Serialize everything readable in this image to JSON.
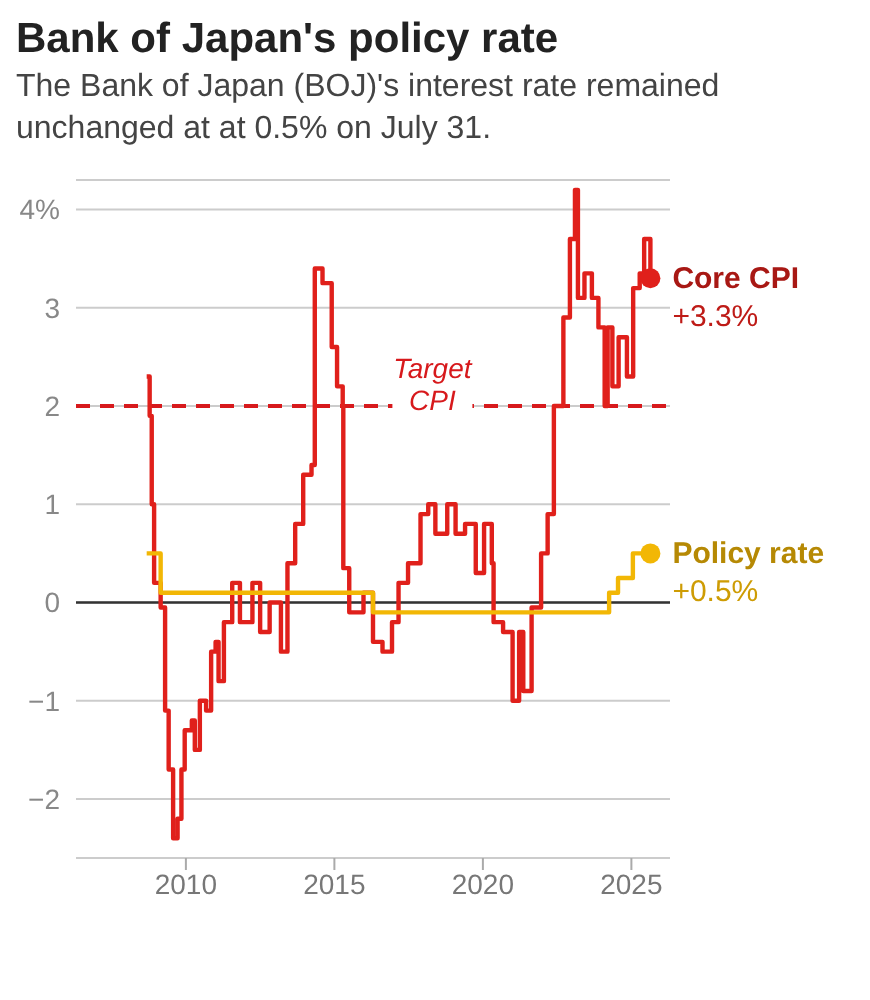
{
  "chart_data": {
    "type": "step",
    "title": "Bank of Japan's policy rate",
    "subtitle": "The Bank of Japan (BOJ)'s interest rate remained unchanged at at 0.5% on July 31.",
    "xlim": [
      2006.3,
      2026.3
    ],
    "xticks": [
      2010,
      2015,
      2020,
      2025
    ],
    "ylim": [
      -2.6,
      4.3
    ],
    "yticks": [
      {
        "value": -2,
        "label": "−2"
      },
      {
        "value": -1,
        "label": "−1"
      },
      0,
      1,
      2,
      3,
      {
        "value": 4,
        "label": "4%"
      }
    ],
    "grid": "y",
    "ref_lines": [
      {
        "axis": "y",
        "value": 0,
        "label": null,
        "color": "#333333",
        "line_style": "solid"
      },
      {
        "axis": "y",
        "value": 2,
        "label": "Target CPI",
        "color": "#d7191c",
        "line_style": "dashed"
      }
    ],
    "series": [
      {
        "name": "Core CPI",
        "color": "#e0201b",
        "x": [
          2008.68,
          2008.78,
          2008.85,
          2008.93,
          2009.15,
          2009.3,
          2009.42,
          2009.57,
          2009.72,
          2009.85,
          2009.96,
          2010.2,
          2010.3,
          2010.47,
          2010.68,
          2010.85,
          2011.0,
          2011.1,
          2011.28,
          2011.56,
          2011.82,
          2012.24,
          2012.5,
          2012.82,
          2013.2,
          2013.42,
          2013.68,
          2013.95,
          2014.23,
          2014.34,
          2014.6,
          2014.91,
          2015.09,
          2015.28,
          2015.3,
          2015.5,
          2015.98,
          2016.3,
          2016.62,
          2016.94,
          2017.16,
          2017.48,
          2017.9,
          2018.16,
          2018.4,
          2018.8,
          2019.08,
          2019.4,
          2019.76,
          2020.04,
          2020.3,
          2020.36,
          2020.68,
          2021.0,
          2021.22,
          2021.36,
          2021.64,
          2021.96,
          2022.18,
          2022.39,
          2022.71,
          2022.93,
          2023.1,
          2023.2,
          2023.42,
          2023.67,
          2023.89,
          2024.1,
          2024.2,
          2024.36,
          2024.57,
          2024.85,
          2025.06,
          2025.28,
          2025.43,
          2025.64
        ],
        "values": [
          2.3,
          1.9,
          1.0,
          0.2,
          -0.05,
          -1.1,
          -1.7,
          -2.4,
          -2.2,
          -1.7,
          -1.3,
          -1.2,
          -1.5,
          -1.0,
          -1.1,
          -0.5,
          -0.4,
          -0.8,
          -0.2,
          0.2,
          -0.2,
          0.2,
          -0.3,
          0.0,
          -0.5,
          0.4,
          0.8,
          1.3,
          1.4,
          3.4,
          3.25,
          2.6,
          2.2,
          2.0,
          0.35,
          -0.1,
          0.1,
          -0.4,
          -0.5,
          -0.2,
          0.2,
          0.4,
          0.9,
          1.0,
          0.7,
          1.0,
          0.7,
          0.8,
          0.3,
          0.8,
          0.4,
          -0.2,
          -0.3,
          -1.0,
          -0.3,
          -0.9,
          -0.05,
          0.5,
          0.9,
          2.0,
          2.9,
          3.7,
          4.2,
          3.1,
          3.35,
          3.1,
          2.8,
          2.0,
          2.8,
          2.2,
          2.7,
          2.3,
          3.2,
          3.35,
          3.7,
          3.3
        ],
        "value_labels": [
          null,
          null,
          null,
          null,
          null,
          null,
          null,
          null,
          null,
          null,
          null,
          null,
          null,
          null,
          null,
          null,
          null,
          null,
          null,
          null,
          null,
          null,
          null,
          null,
          null,
          null,
          null,
          null,
          null,
          null,
          null,
          null,
          null,
          null,
          null,
          null,
          null,
          null,
          null,
          null,
          null,
          null,
          null,
          null,
          null,
          null,
          null,
          null,
          null,
          null,
          null,
          null,
          null,
          null,
          null,
          null,
          null,
          null,
          null,
          null,
          null,
          null,
          null,
          null,
          null,
          null,
          null,
          null,
          null,
          null,
          null,
          null,
          null,
          null,
          null,
          "+3.3%"
        ]
      },
      {
        "name": "Policy rate",
        "color": "#f2b705",
        "x": [
          2008.68,
          2009.15,
          2016.3,
          2024.25,
          2024.55,
          2025.05,
          2025.64
        ],
        "values": [
          0.5,
          0.1,
          -0.1,
          0.1,
          0.25,
          0.5,
          0.5
        ],
        "value_labels": [
          null,
          null,
          null,
          null,
          null,
          null,
          "+0.5%"
        ]
      }
    ]
  }
}
